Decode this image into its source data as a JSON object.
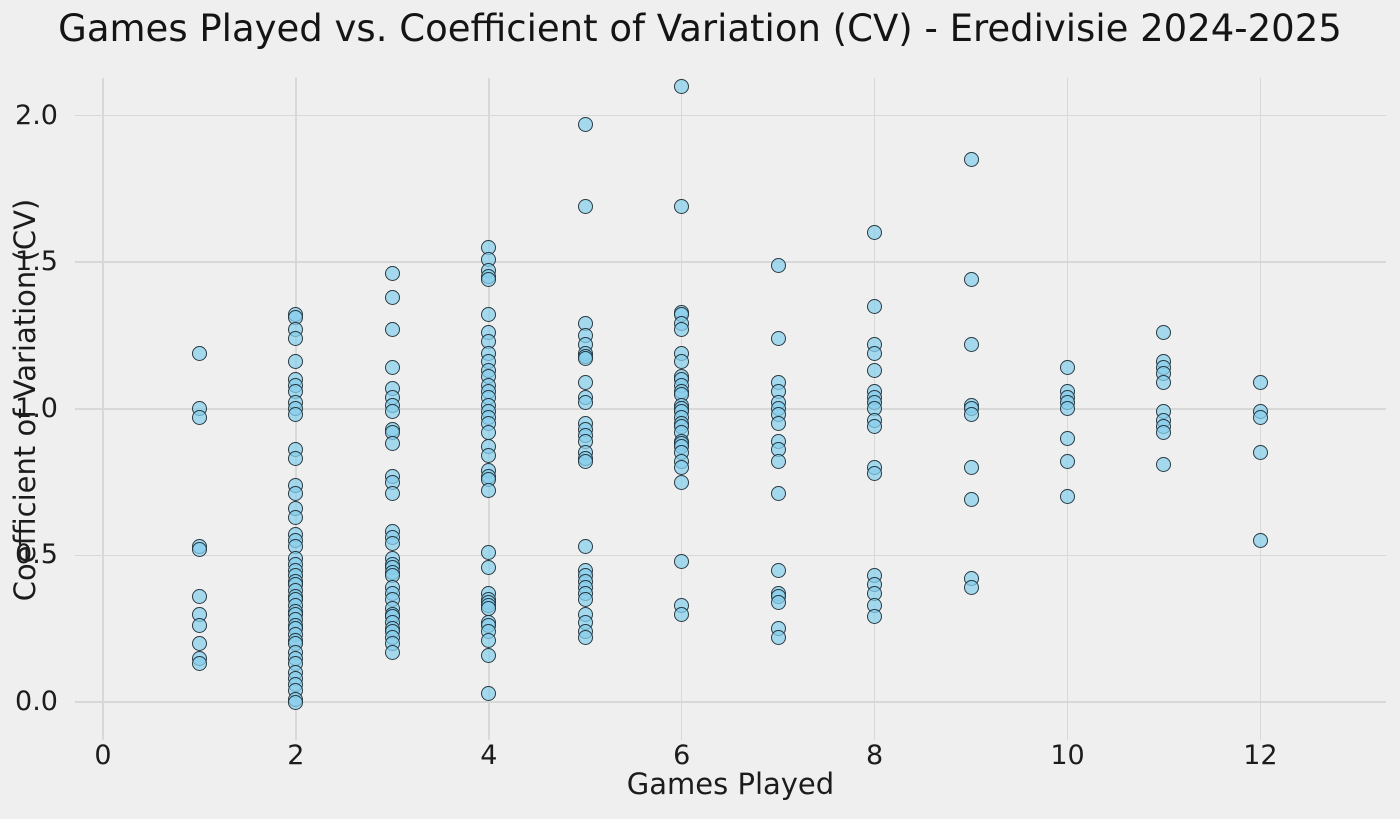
{
  "chart_data": {
    "type": "scatter",
    "title": "Games Played vs. Coefficient of Variation (CV) - Eredivisie 2024-2025",
    "xlabel": "Games Played",
    "ylabel": "Coefficient of Variation (CV)",
    "x_ticks": [
      "0",
      "2",
      "4",
      "6",
      "8",
      "10",
      "12"
    ],
    "y_ticks": [
      "0.0",
      "0.5",
      "1.0",
      "1.5",
      "2.0"
    ],
    "xlim": [
      -0.3,
      13.3
    ],
    "ylim": [
      -0.07,
      2.13
    ],
    "grid": true,
    "legend_position": "none",
    "marker": {
      "shape": "circle",
      "fill": "#87CEEB",
      "edge": "#141E26",
      "fill_alpha": 0.72,
      "edge_alpha": 0.85,
      "radius_px": 7
    },
    "series": [
      {
        "games_played": 1,
        "cv_values": [
          1.19,
          1.0,
          0.97,
          0.53,
          0.52,
          0.36,
          0.3,
          0.26,
          0.2,
          0.15,
          0.13
        ]
      },
      {
        "games_played": 2,
        "cv_values": [
          1.32,
          1.31,
          1.27,
          1.24,
          1.16,
          1.1,
          1.08,
          1.06,
          1.02,
          1.0,
          0.98,
          0.86,
          0.83,
          0.74,
          0.71,
          0.66,
          0.63,
          0.57,
          0.55,
          0.53,
          0.49,
          0.47,
          0.45,
          0.43,
          0.41,
          0.4,
          0.38,
          0.36,
          0.35,
          0.33,
          0.31,
          0.3,
          0.28,
          0.26,
          0.25,
          0.23,
          0.21,
          0.2,
          0.17,
          0.15,
          0.13,
          0.1,
          0.08,
          0.06,
          0.04,
          0.01,
          0.0
        ]
      },
      {
        "games_played": 3,
        "cv_values": [
          1.46,
          1.38,
          1.27,
          1.14,
          1.07,
          1.04,
          1.01,
          0.99,
          0.93,
          0.92,
          0.88,
          0.77,
          0.75,
          0.71,
          0.58,
          0.56,
          0.54,
          0.49,
          0.47,
          0.46,
          0.44,
          0.43,
          0.39,
          0.37,
          0.35,
          0.32,
          0.3,
          0.29,
          0.27,
          0.25,
          0.24,
          0.22,
          0.2,
          0.17
        ]
      },
      {
        "games_played": 4,
        "cv_values": [
          1.55,
          1.51,
          1.47,
          1.45,
          1.44,
          1.32,
          1.26,
          1.23,
          1.19,
          1.16,
          1.13,
          1.11,
          1.08,
          1.06,
          1.04,
          1.01,
          0.99,
          0.97,
          0.95,
          0.92,
          0.87,
          0.84,
          0.79,
          0.77,
          0.76,
          0.72,
          0.51,
          0.46,
          0.37,
          0.35,
          0.34,
          0.33,
          0.32,
          0.27,
          0.26,
          0.24,
          0.21,
          0.16,
          0.03
        ]
      },
      {
        "games_played": 5,
        "cv_values": [
          1.97,
          1.69,
          1.29,
          1.25,
          1.22,
          1.19,
          1.18,
          1.17,
          1.09,
          1.04,
          1.02,
          0.95,
          0.93,
          0.91,
          0.89,
          0.85,
          0.83,
          0.82,
          0.53,
          0.45,
          0.43,
          0.41,
          0.39,
          0.37,
          0.35,
          0.3,
          0.27,
          0.24,
          0.22
        ]
      },
      {
        "games_played": 6,
        "cv_values": [
          2.1,
          1.69,
          1.33,
          1.32,
          1.29,
          1.27,
          1.19,
          1.16,
          1.11,
          1.1,
          1.08,
          1.06,
          1.05,
          1.01,
          1.0,
          0.99,
          0.97,
          0.95,
          0.94,
          0.92,
          0.89,
          0.88,
          0.87,
          0.85,
          0.82,
          0.8,
          0.75,
          0.48,
          0.33,
          0.3
        ]
      },
      {
        "games_played": 7,
        "cv_values": [
          1.49,
          1.24,
          1.09,
          1.06,
          1.02,
          1.0,
          0.98,
          0.95,
          0.89,
          0.86,
          0.82,
          0.71,
          0.45,
          0.37,
          0.36,
          0.34,
          0.25,
          0.22
        ]
      },
      {
        "games_played": 8,
        "cv_values": [
          1.6,
          1.35,
          1.22,
          1.19,
          1.13,
          1.06,
          1.04,
          1.02,
          1.0,
          0.96,
          0.94,
          0.8,
          0.78,
          0.43,
          0.4,
          0.37,
          0.33,
          0.29
        ]
      },
      {
        "games_played": 9,
        "cv_values": [
          1.85,
          1.44,
          1.22,
          1.01,
          1.0,
          0.98,
          0.8,
          0.69,
          0.42,
          0.39
        ]
      },
      {
        "games_played": 10,
        "cv_values": [
          1.14,
          1.06,
          1.04,
          1.02,
          1.0,
          0.9,
          0.82,
          0.7
        ]
      },
      {
        "games_played": 11,
        "cv_values": [
          1.26,
          1.16,
          1.14,
          1.12,
          1.09,
          0.99,
          0.96,
          0.94,
          0.92,
          0.81
        ]
      },
      {
        "games_played": 12,
        "cv_values": [
          1.09,
          0.99,
          0.97,
          0.85,
          0.55
        ]
      }
    ]
  },
  "colors": {
    "figure_background": "#F0EFEF",
    "gridline": "#D8D8D8",
    "text": "#1C1C1C",
    "marker_fill": "#87CEEB",
    "marker_edge": "#141E26"
  }
}
